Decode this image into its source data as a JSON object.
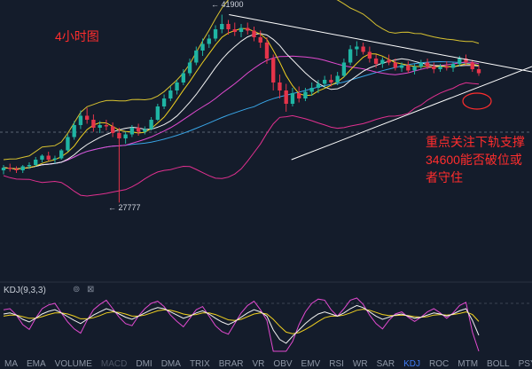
{
  "annotations": {
    "timeframe_label": "4小时图",
    "note": "重点关注下轨支撑34600能否破位或者守住"
  },
  "indicator": {
    "name": "KDJ(9,3,3)"
  },
  "tabs": [
    {
      "label": "MA",
      "state": "normal"
    },
    {
      "label": "EMA",
      "state": "normal"
    },
    {
      "label": "VOLUME",
      "state": "normal"
    },
    {
      "label": "MACD",
      "state": "dim"
    },
    {
      "label": "DMI",
      "state": "normal"
    },
    {
      "label": "DMA",
      "state": "normal"
    },
    {
      "label": "TRIX",
      "state": "normal"
    },
    {
      "label": "BRAR",
      "state": "normal"
    },
    {
      "label": "VR",
      "state": "normal"
    },
    {
      "label": "OBV",
      "state": "normal"
    },
    {
      "label": "EMV",
      "state": "normal"
    },
    {
      "label": "RSI",
      "state": "normal"
    },
    {
      "label": "WR",
      "state": "normal"
    },
    {
      "label": "SAR",
      "state": "normal"
    },
    {
      "label": "KDJ",
      "state": "active"
    },
    {
      "label": "ROC",
      "state": "normal"
    },
    {
      "label": "MTM",
      "state": "normal"
    },
    {
      "label": "BOLL",
      "state": "normal"
    },
    {
      "label": "PSY",
      "state": "normal"
    }
  ],
  "colors": {
    "background": "#141c2b",
    "up": "#1fb5a4",
    "down": "#e5344a",
    "annotation_red": "#ff2d2d",
    "trendline": "#ffffff",
    "grid_dash": "#5a6373"
  },
  "chart_data": {
    "type": "candlestick",
    "title": "4小时图",
    "high_label": "41900",
    "low_label": "27777",
    "support_level": 34600,
    "ylim": [
      23000,
      43000
    ],
    "candles_ohlc": [
      [
        30200,
        30600,
        29900,
        30400
      ],
      [
        30400,
        30700,
        30100,
        30300
      ],
      [
        30300,
        30500,
        30000,
        30200
      ],
      [
        30200,
        30600,
        30000,
        30500
      ],
      [
        30500,
        30800,
        30300,
        30600
      ],
      [
        30600,
        31200,
        30500,
        31000
      ],
      [
        31000,
        31400,
        30800,
        31300
      ],
      [
        31300,
        31600,
        30900,
        31000
      ],
      [
        31000,
        31300,
        30700,
        31100
      ],
      [
        31100,
        31800,
        31000,
        31700
      ],
      [
        31700,
        32900,
        31600,
        32700
      ],
      [
        32700,
        33900,
        32500,
        33600
      ],
      [
        33600,
        34700,
        33300,
        34300
      ],
      [
        34300,
        34900,
        33700,
        34000
      ],
      [
        34000,
        34400,
        33100,
        33400
      ],
      [
        33400,
        33900,
        33000,
        33600
      ],
      [
        33600,
        34000,
        33200,
        33500
      ],
      [
        33500,
        33800,
        32700,
        33000
      ],
      [
        33000,
        33400,
        27777,
        32600
      ],
      [
        32600,
        33100,
        32200,
        32900
      ],
      [
        32900,
        33600,
        32700,
        33400
      ],
      [
        33400,
        33700,
        32800,
        33100
      ],
      [
        33100,
        33500,
        32900,
        33300
      ],
      [
        33300,
        34200,
        33200,
        34000
      ],
      [
        34000,
        35200,
        33900,
        35000
      ],
      [
        35000,
        35900,
        34800,
        35600
      ],
      [
        35600,
        36500,
        35400,
        36200
      ],
      [
        36200,
        37000,
        35900,
        36800
      ],
      [
        36800,
        37800,
        36600,
        37500
      ],
      [
        37500,
        38600,
        37300,
        38300
      ],
      [
        38300,
        39500,
        38100,
        39200
      ],
      [
        39200,
        40100,
        38800,
        39700
      ],
      [
        39700,
        40400,
        39400,
        40100
      ],
      [
        40100,
        41100,
        39900,
        40800
      ],
      [
        40800,
        41900,
        40500,
        41200
      ],
      [
        41200,
        41500,
        40400,
        40800
      ],
      [
        40800,
        41300,
        40300,
        40600
      ],
      [
        40600,
        41200,
        40200,
        40900
      ],
      [
        40900,
        41300,
        40400,
        40700
      ],
      [
        40700,
        41000,
        39900,
        40200
      ],
      [
        40200,
        40700,
        39400,
        39800
      ],
      [
        39800,
        40200,
        38200,
        38600
      ],
      [
        38600,
        38900,
        36200,
        36800
      ],
      [
        36800,
        37400,
        35600,
        36200
      ],
      [
        36200,
        36700,
        34600,
        35200
      ],
      [
        35200,
        36400,
        35000,
        36000
      ],
      [
        36000,
        36500,
        35300,
        35600
      ],
      [
        35600,
        36400,
        35400,
        36100
      ],
      [
        36100,
        36800,
        35800,
        36400
      ],
      [
        36400,
        37000,
        36000,
        36700
      ],
      [
        36700,
        37300,
        36400,
        37000
      ],
      [
        37000,
        37400,
        36500,
        36800
      ],
      [
        36800,
        37600,
        36600,
        37300
      ],
      [
        37300,
        38600,
        37200,
        38300
      ],
      [
        38300,
        39600,
        38100,
        39300
      ],
      [
        39300,
        39900,
        38800,
        39500
      ],
      [
        39500,
        39800,
        38900,
        39100
      ],
      [
        39100,
        39500,
        38300,
        38600
      ],
      [
        38600,
        38900,
        37900,
        38200
      ],
      [
        38200,
        38700,
        37900,
        38500
      ],
      [
        38500,
        38900,
        38100,
        38300
      ],
      [
        38300,
        38600,
        37700,
        37900
      ],
      [
        37900,
        38300,
        37600,
        38100
      ],
      [
        38100,
        38400,
        37500,
        37700
      ],
      [
        37700,
        38200,
        37400,
        38000
      ],
      [
        38000,
        38500,
        37800,
        38300
      ],
      [
        38300,
        38600,
        37800,
        38000
      ],
      [
        38000,
        38300,
        37500,
        37800
      ],
      [
        37800,
        38200,
        37600,
        38000
      ],
      [
        38000,
        38400,
        37700,
        37900
      ],
      [
        37900,
        38300,
        37600,
        38200
      ],
      [
        38200,
        38800,
        38000,
        38600
      ],
      [
        38600,
        38900,
        38100,
        38300
      ],
      [
        38300,
        38500,
        37600,
        37800
      ],
      [
        37800,
        38100,
        37300,
        37500
      ]
    ],
    "kdj": {
      "k": [
        70,
        72,
        68,
        60,
        55,
        62,
        70,
        75,
        78,
        72,
        65,
        58,
        52,
        60,
        68,
        74,
        80,
        76,
        70,
        64,
        60,
        66,
        72,
        78,
        82,
        80,
        74,
        68,
        62,
        66,
        72,
        76,
        70,
        62,
        55,
        50,
        56,
        64,
        72,
        78,
        74,
        66,
        40,
        22,
        15,
        28,
        40,
        52,
        62,
        70,
        74,
        70,
        66,
        72,
        80,
        86,
        82,
        74,
        66,
        60,
        64,
        68,
        70,
        66,
        62,
        64,
        68,
        72,
        70,
        66,
        70,
        76,
        80,
        58,
        30
      ],
      "d": [
        66,
        68,
        68,
        65,
        62,
        62,
        65,
        69,
        72,
        72,
        70,
        66,
        61,
        61,
        63,
        67,
        72,
        74,
        73,
        70,
        66,
        66,
        68,
        72,
        76,
        78,
        77,
        74,
        70,
        68,
        69,
        72,
        72,
        69,
        64,
        59,
        58,
        60,
        65,
        70,
        72,
        70,
        60,
        47,
        36,
        33,
        35,
        41,
        48,
        56,
        63,
        66,
        66,
        68,
        72,
        77,
        79,
        77,
        73,
        69,
        67,
        67,
        68,
        67,
        65,
        64,
        65,
        68,
        69,
        68,
        69,
        71,
        74,
        69,
        56
      ],
      "j": [
        78,
        80,
        68,
        50,
        41,
        62,
        80,
        87,
        90,
        72,
        55,
        42,
        34,
        58,
        78,
        88,
        96,
        80,
        64,
        52,
        48,
        66,
        80,
        90,
        94,
        84,
        68,
        56,
        46,
        62,
        78,
        84,
        66,
        48,
        37,
        32,
        52,
        72,
        86,
        94,
        78,
        58,
        0,
        0,
        0,
        18,
        50,
        74,
        90,
        98,
        96,
        78,
        66,
        80,
        96,
        100,
        88,
        68,
        52,
        42,
        58,
        70,
        74,
        64,
        56,
        64,
        74,
        80,
        72,
        62,
        72,
        86,
        92,
        36,
        0
      ]
    }
  }
}
